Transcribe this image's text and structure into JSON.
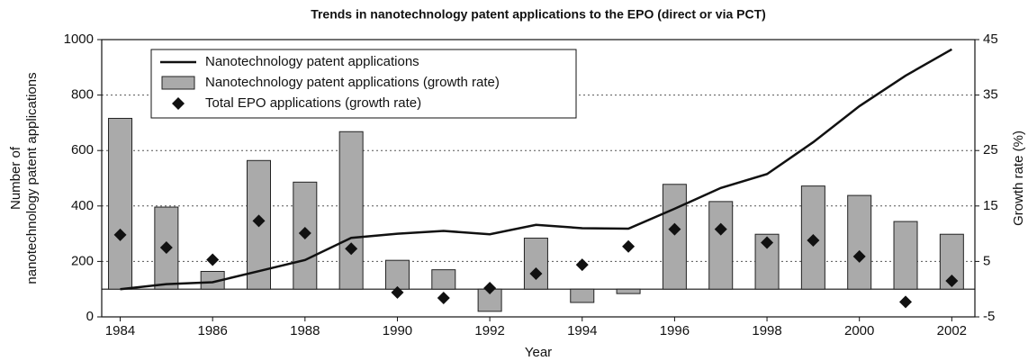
{
  "chart_data": {
    "type": "combo",
    "title": "Trends in nanotechnology patent applications to the EPO (direct or via PCT)",
    "xlabel": "Year",
    "ylabel": [
      "Number of",
      "nanotechnology patent  applications"
    ],
    "y2label": "Growth rate (%)",
    "x": [
      1984,
      1985,
      1986,
      1987,
      1988,
      1989,
      1990,
      1991,
      1992,
      1993,
      1994,
      1995,
      1996,
      1997,
      1998,
      1999,
      2000,
      2001,
      2002
    ],
    "xlim": [
      1983.6,
      2002.5
    ],
    "xticks": [
      1984,
      1986,
      1988,
      1990,
      1992,
      1994,
      1996,
      1998,
      2000,
      2002
    ],
    "ylim": [
      0,
      1000
    ],
    "yticks": [
      0,
      200,
      400,
      600,
      800,
      1000
    ],
    "y2lim": [
      -5,
      45
    ],
    "y2ticks": [
      -5,
      5,
      15,
      25,
      35,
      45
    ],
    "grid": true,
    "legend": "top-left",
    "series": [
      {
        "name": "Nanotechnology patent applications",
        "kind": "line",
        "color": "#111111",
        "axis": "y",
        "values": [
          100,
          118,
          125,
          165,
          205,
          285,
          300,
          310,
          298,
          332,
          320,
          318,
          390,
          465,
          515,
          630,
          760,
          870,
          965
        ]
      },
      {
        "name": "Nanotechnology patent applications (growth rate)",
        "kind": "bar",
        "color": "#aaaaaa",
        "axis": "y2",
        "values": [
          30.8,
          14.8,
          3.2,
          23.2,
          19.3,
          28.4,
          5.2,
          3.5,
          -4,
          9.2,
          -2.4,
          -0.8,
          18.9,
          15.8,
          9.9,
          18.6,
          16.9,
          12.2,
          9.9
        ]
      },
      {
        "name": "Total EPO applications (growth rate)",
        "kind": "diamond",
        "color": "#111111",
        "axis": "y2",
        "values": [
          9.8,
          7.5,
          5.3,
          12.3,
          10.1,
          7.3,
          -0.6,
          -1.6,
          0.2,
          2.8,
          4.4,
          7.7,
          10.8,
          10.8,
          8.4,
          8.8,
          5.9,
          -2.3,
          1.5
        ]
      }
    ]
  }
}
